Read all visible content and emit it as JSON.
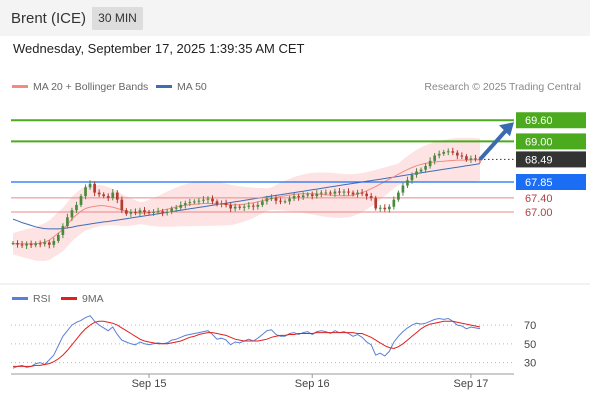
{
  "header": {
    "instrument": "Brent (ICE)",
    "timeframe": "30 MIN",
    "datetime": "Wednesday, September 17, 2025 1:39:35 AM CET"
  },
  "legend": {
    "ma20": "MA 20 + Bollinger Bands",
    "ma50": "MA 50",
    "ma20_color": "#f28b82",
    "ma50_color": "#3f6db5"
  },
  "watermark": "Research © 2025 Trading Central",
  "rsi_legend": {
    "rsi": "RSI",
    "ma9": "9MA",
    "rsi_color": "#5b7fd6",
    "ma9_color": "#e02020"
  },
  "colors": {
    "resistance": "#4caa1f",
    "pivot": "#1b6ef3",
    "support": "#e88a8a",
    "current": "#333333",
    "arrow": "#3a6ab0",
    "candle_up": "#4b8a3e",
    "candle_down": "#b53a2f"
  },
  "chart_data": [
    {
      "type": "candlestick",
      "name": "price",
      "x_ticks": [
        "Sep 15",
        "Sep 16",
        "Sep 17"
      ],
      "levels": [
        {
          "value": 69.6,
          "label": "69.60",
          "kind": "resistance"
        },
        {
          "value": 69.0,
          "label": "69.00",
          "kind": "resistance"
        },
        {
          "value": 68.49,
          "label": "68.49",
          "kind": "current"
        },
        {
          "value": 67.85,
          "label": "67.85",
          "kind": "pivot"
        },
        {
          "value": 67.4,
          "label": "67.40",
          "kind": "support"
        },
        {
          "value": 67.0,
          "label": "67.00",
          "kind": "support"
        }
      ],
      "ylim": [
        65.3,
        70.4
      ],
      "close_series": [
        66.12,
        66.08,
        66.05,
        66.1,
        66.06,
        66.11,
        66.09,
        66.14,
        66.07,
        66.18,
        66.35,
        66.6,
        66.85,
        67.05,
        67.2,
        67.45,
        67.7,
        67.8,
        67.55,
        67.5,
        67.45,
        67.4,
        67.55,
        67.35,
        67.05,
        66.95,
        67.0,
        66.98,
        67.05,
        67.0,
        66.98,
        67.0,
        67.02,
        66.98,
        67.0,
        67.1,
        67.12,
        67.2,
        67.25,
        67.28,
        67.3,
        67.32,
        67.35,
        67.38,
        67.3,
        67.22,
        67.25,
        67.2,
        67.1,
        67.15,
        67.12,
        67.15,
        67.18,
        67.15,
        67.2,
        67.3,
        67.38,
        67.4,
        67.32,
        67.3,
        67.3,
        67.38,
        67.45,
        67.42,
        67.47,
        67.5,
        67.45,
        67.52,
        67.55,
        67.55,
        67.52,
        67.58,
        67.55,
        67.58,
        67.55,
        67.5,
        67.55,
        67.52,
        67.45,
        67.4,
        67.1,
        67.12,
        67.08,
        67.15,
        67.35,
        67.55,
        67.75,
        67.9,
        68.05,
        68.15,
        68.2,
        68.3,
        68.45,
        68.6,
        68.65,
        68.7,
        68.72,
        68.68,
        68.6,
        68.58,
        68.48,
        68.52,
        68.5,
        68.49
      ],
      "ma20": [
        66.1,
        66.1,
        66.1,
        66.1,
        66.1,
        66.1,
        66.12,
        66.15,
        66.2,
        66.3,
        66.4,
        66.5,
        66.65,
        66.8,
        66.92,
        67.02,
        67.1,
        67.14,
        67.16,
        67.18,
        67.18,
        67.16,
        67.14,
        67.1,
        67.06,
        67.02,
        67.0,
        66.98,
        66.97,
        66.97,
        66.98,
        67.0,
        67.02,
        67.05,
        67.08,
        67.11,
        67.14,
        67.17,
        67.19,
        67.21,
        67.22,
        67.23,
        67.24,
        67.24,
        67.24,
        67.23,
        67.22,
        67.21,
        67.2,
        67.2,
        67.21,
        67.22,
        67.24,
        67.26,
        67.29,
        67.32,
        67.35,
        67.38,
        67.41,
        67.44,
        67.46,
        67.48,
        67.5,
        67.51,
        67.52,
        67.52,
        67.52,
        67.51,
        67.5,
        67.49,
        67.48,
        67.47,
        67.46,
        67.46,
        67.46,
        67.48,
        67.51,
        67.55,
        67.6,
        67.66,
        67.72,
        67.79,
        67.86,
        67.93,
        68.0,
        68.07,
        68.14,
        68.2,
        68.26,
        68.31,
        68.35,
        68.38,
        68.4,
        68.42,
        68.43,
        68.44,
        68.45,
        68.46,
        68.47,
        68.47,
        68.47,
        68.48,
        68.48,
        68.48
      ],
      "ma50": [
        66.8,
        66.75,
        66.7,
        66.66,
        66.62,
        66.58,
        66.55,
        66.53,
        66.52,
        66.52,
        66.52,
        66.53,
        66.55,
        66.57,
        66.6,
        66.62,
        66.64,
        66.66,
        66.68,
        66.7,
        66.72,
        66.73,
        66.75,
        66.77,
        66.79,
        66.81,
        66.83,
        66.85,
        66.87,
        66.89,
        66.91,
        66.93,
        66.95,
        66.97,
        66.99,
        67.01,
        67.03,
        67.05,
        67.07,
        67.09,
        67.11,
        67.13,
        67.15,
        67.17,
        67.19,
        67.21,
        67.23,
        67.25,
        67.27,
        67.29,
        67.31,
        67.33,
        67.35,
        67.37,
        67.39,
        67.41,
        67.43,
        67.45,
        67.47,
        67.49,
        67.51,
        67.53,
        67.55,
        67.57,
        67.59,
        67.61,
        67.63,
        67.65,
        67.67,
        67.69,
        67.71,
        67.73,
        67.75,
        67.77,
        67.79,
        67.81,
        67.83,
        67.85,
        67.87,
        67.89,
        67.91,
        67.93,
        67.95,
        67.97,
        67.99,
        68.01,
        68.03,
        68.05,
        68.07,
        68.09,
        68.11,
        68.13,
        68.15,
        68.17,
        68.19,
        68.21,
        68.23,
        68.25,
        68.27,
        68.29,
        68.31,
        68.33,
        68.35,
        68.37
      ],
      "bb_width": 0.55
    },
    {
      "type": "line",
      "name": "rsi",
      "ylim": [
        20,
        85
      ],
      "y_ticks": [
        70,
        50,
        30
      ],
      "rsi": [
        24,
        26,
        27,
        25,
        26,
        29,
        30,
        28,
        33,
        38,
        48,
        58,
        64,
        70,
        73,
        75,
        78,
        80,
        74,
        70,
        67,
        64,
        68,
        60,
        54,
        52,
        50,
        49,
        52,
        50,
        49,
        50,
        51,
        50,
        51,
        54,
        55,
        57,
        59,
        60,
        61,
        62,
        63,
        64,
        60,
        55,
        56,
        54,
        49,
        52,
        51,
        53,
        55,
        53,
        56,
        60,
        64,
        65,
        60,
        58,
        58,
        61,
        62,
        60,
        62,
        63,
        60,
        63,
        64,
        63,
        61,
        64,
        62,
        63,
        61,
        58,
        60,
        57,
        52,
        49,
        38,
        40,
        37,
        42,
        52,
        58,
        63,
        67,
        70,
        72,
        71,
        72,
        74,
        76,
        77,
        76,
        77,
        74,
        70,
        69,
        66,
        68,
        67,
        66
      ],
      "ma9": [
        26,
        26,
        26,
        26,
        26,
        27,
        27,
        28,
        29,
        31,
        34,
        38,
        43,
        49,
        55,
        61,
        66,
        70,
        73,
        74,
        74,
        73,
        72,
        70,
        67,
        64,
        61,
        58,
        55,
        53,
        52,
        51,
        50,
        50,
        50,
        51,
        52,
        53,
        55,
        57,
        58,
        60,
        61,
        62,
        62,
        61,
        60,
        59,
        57,
        55,
        54,
        53,
        53,
        53,
        53,
        54,
        55,
        57,
        58,
        59,
        59,
        60,
        60,
        61,
        61,
        61,
        61,
        62,
        62,
        62,
        62,
        62,
        62,
        62,
        62,
        62,
        61,
        61,
        59,
        57,
        54,
        51,
        48,
        46,
        45,
        47,
        50,
        54,
        58,
        62,
        66,
        69,
        71,
        72,
        73,
        74,
        74,
        74,
        73,
        72,
        71,
        70,
        69,
        68
      ]
    }
  ]
}
